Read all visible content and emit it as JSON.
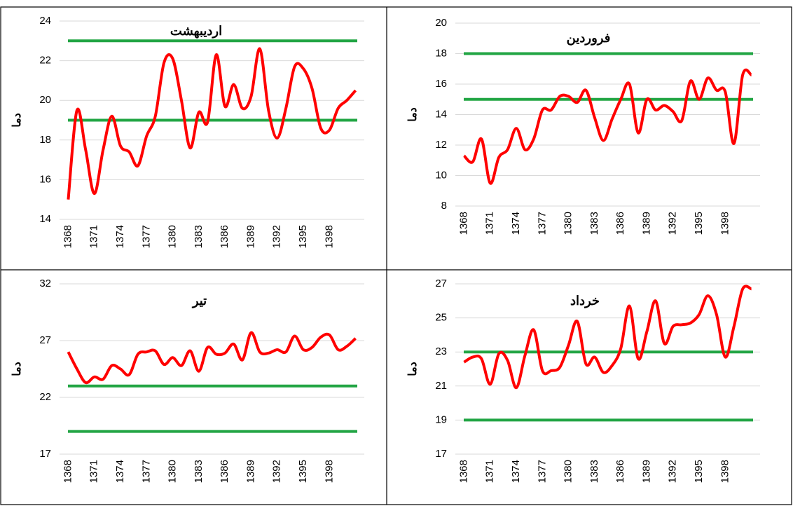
{
  "chart_data": [
    {
      "type": "line",
      "title": "اردیبهشت",
      "y_label": "دما",
      "x": [
        1368,
        1369,
        1370,
        1371,
        1372,
        1373,
        1374,
        1375,
        1376,
        1377,
        1378,
        1379,
        1380,
        1381,
        1382,
        1383,
        1384,
        1385,
        1386,
        1387,
        1388,
        1389,
        1390,
        1391,
        1392,
        1393,
        1394,
        1395,
        1396,
        1397,
        1398,
        1399,
        1400,
        1401
      ],
      "values": [
        15.0,
        19.5,
        17.5,
        15.3,
        17.5,
        19.2,
        17.7,
        17.4,
        16.7,
        18.2,
        19.2,
        21.9,
        22.1,
        20.0,
        17.6,
        19.4,
        18.9,
        22.3,
        19.7,
        20.8,
        19.6,
        20.2,
        22.6,
        19.5,
        18.1,
        19.6,
        21.7,
        21.6,
        20.6,
        18.6,
        18.5,
        19.6,
        20.0,
        20.5
      ],
      "color": "#ff0000",
      "hlines": [
        23,
        19
      ],
      "hline_color": "#22a544",
      "xlim": [
        1367,
        1402
      ],
      "xticks": [
        1368,
        1371,
        1374,
        1377,
        1380,
        1383,
        1386,
        1389,
        1392,
        1395,
        1398
      ],
      "ylim": [
        14,
        24
      ],
      "yticks": [
        14,
        16,
        18,
        20,
        22,
        24
      ],
      "grid": true
    },
    {
      "type": "line",
      "title": "فروردین",
      "y_label": "دما",
      "x": [
        1368,
        1369,
        1370,
        1371,
        1372,
        1373,
        1374,
        1375,
        1376,
        1377,
        1378,
        1379,
        1380,
        1381,
        1382,
        1383,
        1384,
        1385,
        1386,
        1387,
        1388,
        1389,
        1390,
        1391,
        1392,
        1393,
        1394,
        1395,
        1396,
        1397,
        1398,
        1399,
        1400,
        1401
      ],
      "values": [
        11.3,
        10.9,
        12.4,
        9.5,
        11.2,
        11.7,
        13.1,
        11.7,
        12.4,
        14.3,
        14.3,
        15.2,
        15.2,
        14.8,
        15.6,
        13.8,
        12.3,
        13.7,
        15.0,
        16.0,
        12.8,
        15.0,
        14.3,
        14.6,
        14.2,
        13.6,
        16.2,
        15.0,
        16.4,
        15.6,
        15.5,
        12.1,
        16.6,
        16.6
      ],
      "color": "#ff0000",
      "hlines": [
        18,
        15
      ],
      "hline_color": "#22a544",
      "xlim": [
        1367,
        1402
      ],
      "xticks": [
        1368,
        1371,
        1374,
        1377,
        1380,
        1383,
        1386,
        1389,
        1392,
        1395,
        1398
      ],
      "ylim": [
        8,
        20
      ],
      "yticks": [
        8,
        10,
        12,
        14,
        16,
        18,
        20
      ],
      "grid": true
    },
    {
      "type": "line",
      "title": "تیر",
      "y_label": "دما",
      "x": [
        1368,
        1369,
        1370,
        1371,
        1372,
        1373,
        1374,
        1375,
        1376,
        1377,
        1378,
        1379,
        1380,
        1381,
        1382,
        1383,
        1384,
        1385,
        1386,
        1387,
        1388,
        1389,
        1390,
        1391,
        1392,
        1393,
        1394,
        1395,
        1396,
        1397,
        1398,
        1399,
        1400,
        1401
      ],
      "values": [
        26.0,
        24.5,
        23.3,
        23.8,
        23.6,
        24.8,
        24.5,
        24.0,
        25.8,
        26.0,
        26.1,
        24.9,
        25.5,
        24.8,
        26.1,
        24.3,
        26.4,
        25.8,
        25.9,
        26.7,
        25.3,
        27.7,
        26.0,
        25.9,
        26.2,
        26.0,
        27.4,
        26.2,
        26.4,
        27.3,
        27.5,
        26.2,
        26.5,
        27.2
      ],
      "color": "#ff0000",
      "hlines": [
        23,
        19
      ],
      "hline_color": "#22a544",
      "xlim": [
        1367,
        1402
      ],
      "xticks": [
        1368,
        1371,
        1374,
        1377,
        1380,
        1383,
        1386,
        1389,
        1392,
        1395,
        1398
      ],
      "ylim": [
        17,
        32
      ],
      "yticks": [
        17,
        22,
        27,
        32
      ],
      "grid": true
    },
    {
      "type": "line",
      "title": "خرداد",
      "y_label": "دما",
      "x": [
        1368,
        1369,
        1370,
        1371,
        1372,
        1373,
        1374,
        1375,
        1376,
        1377,
        1378,
        1379,
        1380,
        1381,
        1382,
        1383,
        1384,
        1385,
        1386,
        1387,
        1388,
        1389,
        1390,
        1391,
        1392,
        1393,
        1394,
        1395,
        1396,
        1397,
        1398,
        1399,
        1400,
        1401
      ],
      "values": [
        22.4,
        22.7,
        22.6,
        21.1,
        22.9,
        22.5,
        20.9,
        22.8,
        24.3,
        21.9,
        21.9,
        22.1,
        23.4,
        24.8,
        22.3,
        22.7,
        21.8,
        22.2,
        23.2,
        25.7,
        22.6,
        24.2,
        26.0,
        23.5,
        24.5,
        24.6,
        24.7,
        25.2,
        26.3,
        25.2,
        22.7,
        24.5,
        26.7,
        26.7
      ],
      "color": "#ff0000",
      "hlines": [
        23,
        19
      ],
      "hline_color": "#22a544",
      "xlim": [
        1367,
        1402
      ],
      "xticks": [
        1368,
        1371,
        1374,
        1377,
        1380,
        1383,
        1386,
        1389,
        1392,
        1395,
        1398
      ],
      "ylim": [
        17,
        27
      ],
      "yticks": [
        17,
        19,
        21,
        23,
        25,
        27
      ],
      "grid": true
    }
  ]
}
